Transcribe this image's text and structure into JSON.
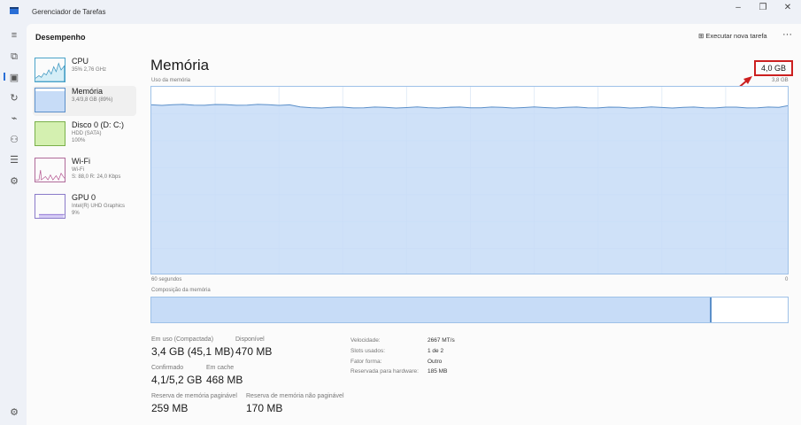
{
  "window": {
    "title": "Gerenciador de Tarefas",
    "controls": [
      "–",
      "❐",
      "✕"
    ]
  },
  "rail": {
    "icons": [
      "hamburger-icon",
      "processes-icon",
      "performance-icon",
      "history-icon",
      "startup-icon",
      "users-icon",
      "details-icon",
      "services-icon",
      "settings-icon"
    ],
    "glyphs": [
      "≡",
      "⧉",
      "▣",
      "↻",
      "⌁",
      "⚇",
      "☰",
      "⚙",
      "⚙"
    ]
  },
  "header": {
    "title": "Desempenho",
    "new_task": "Executar nova tarefa",
    "more": "···"
  },
  "sidebar": {
    "items": [
      {
        "name": "CPU",
        "sub1": "35% 2,76 GHz",
        "sub2": ""
      },
      {
        "name": "Memória",
        "sub1": "3,4/3,8 GB (89%)",
        "sub2": ""
      },
      {
        "name": "Disco 0 (D: C:)",
        "sub1": "HDD (SATA)",
        "sub2": "100%"
      },
      {
        "name": "Wi-Fi",
        "sub1": "Wi-Fi",
        "sub2": "S: 88,0 R: 24,0 Kbps"
      },
      {
        "name": "GPU 0",
        "sub1": "Intel(R) UHD Graphics",
        "sub2": "9%"
      }
    ]
  },
  "main": {
    "title": "Memória",
    "total": "4,0 GB",
    "usage_label": "Uso da memória",
    "usage_max": "3,8 GB",
    "time_left": "60 segundos",
    "time_right": "0",
    "composition_label": "Composição da memória",
    "usage_fraction": 0.89,
    "composition_in_use_fraction": 0.88,
    "colors": {
      "fill": "#c7dcf7",
      "line": "#5b8fc9",
      "highlight": "#cc1f1f"
    },
    "stats": {
      "in_use_label": "Em uso (Compactada)",
      "in_use": "3,4 GB (45,1 MB)",
      "available_label": "Disponível",
      "available": "470 MB",
      "committed_label": "Confirmado",
      "committed": "4,1/5,2 GB",
      "cached_label": "Em cache",
      "cached": "468 MB",
      "paged_label": "Reserva de memória paginável",
      "paged": "259 MB",
      "nonpaged_label": "Reserva de memória não paginável",
      "nonpaged": "170 MB"
    },
    "details": [
      {
        "k": "Velocidade:",
        "v": "2667 MT/s"
      },
      {
        "k": "Slots usados:",
        "v": "1 de 2"
      },
      {
        "k": "Fator forma:",
        "v": "Outro"
      },
      {
        "k": "Reservada para hardware:",
        "v": "185 MB"
      }
    ]
  }
}
